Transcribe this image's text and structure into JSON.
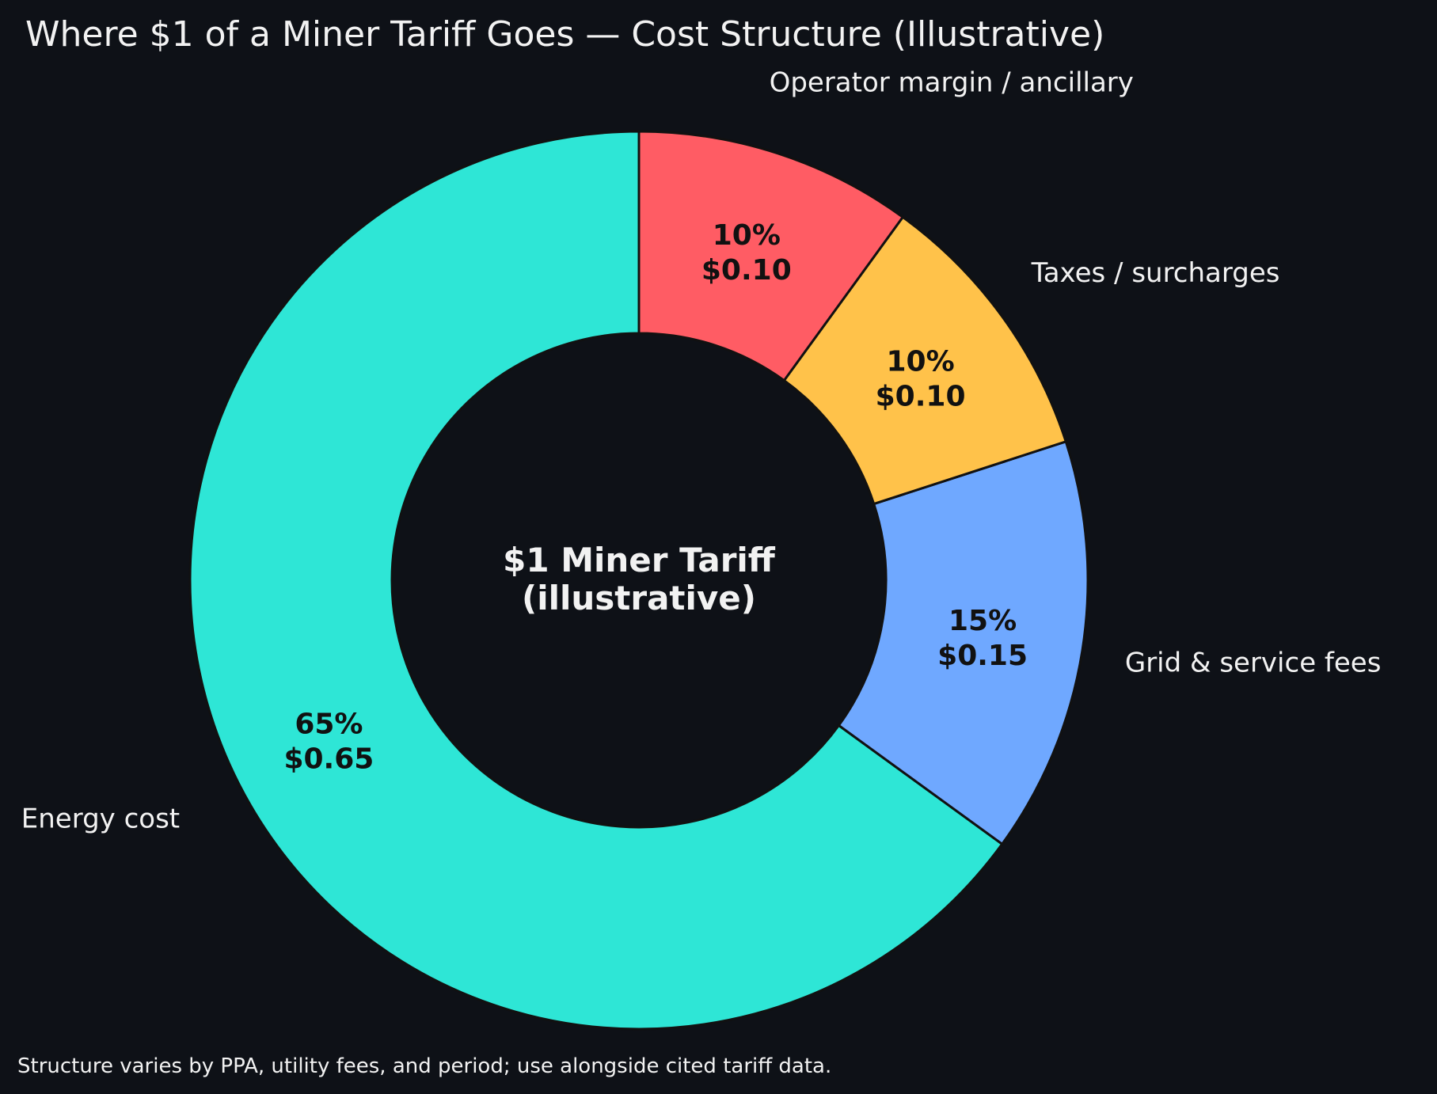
{
  "chart_data": {
    "type": "pie",
    "variant": "donut",
    "title": "Where $1 of a Miner Tariff Goes — Cost Structure (Illustrative)",
    "center_label": [
      "$1 Miner Tariff",
      "(illustrative)"
    ],
    "categories": [
      "Energy cost",
      "Grid & service fees",
      "Taxes / surcharges",
      "Operator margin / ancillary"
    ],
    "values": [
      65,
      15,
      10,
      10
    ],
    "value_labels": [
      [
        "65%",
        "$0.65"
      ],
      [
        "15%",
        "$0.15"
      ],
      [
        "10%",
        "$0.10"
      ],
      [
        "10%",
        "$0.10"
      ]
    ],
    "colors": [
      "#2ee6d6",
      "#6fa8ff",
      "#ffc24a",
      "#ff5c64"
    ],
    "start": "top",
    "direction": "counterclockwise",
    "footnote": "Structure varies by PPA, utility fees, and period; use alongside cited tariff data."
  },
  "theme": {
    "background": "#0e1117",
    "text": "#f2f2f2",
    "edge": "#111111"
  }
}
